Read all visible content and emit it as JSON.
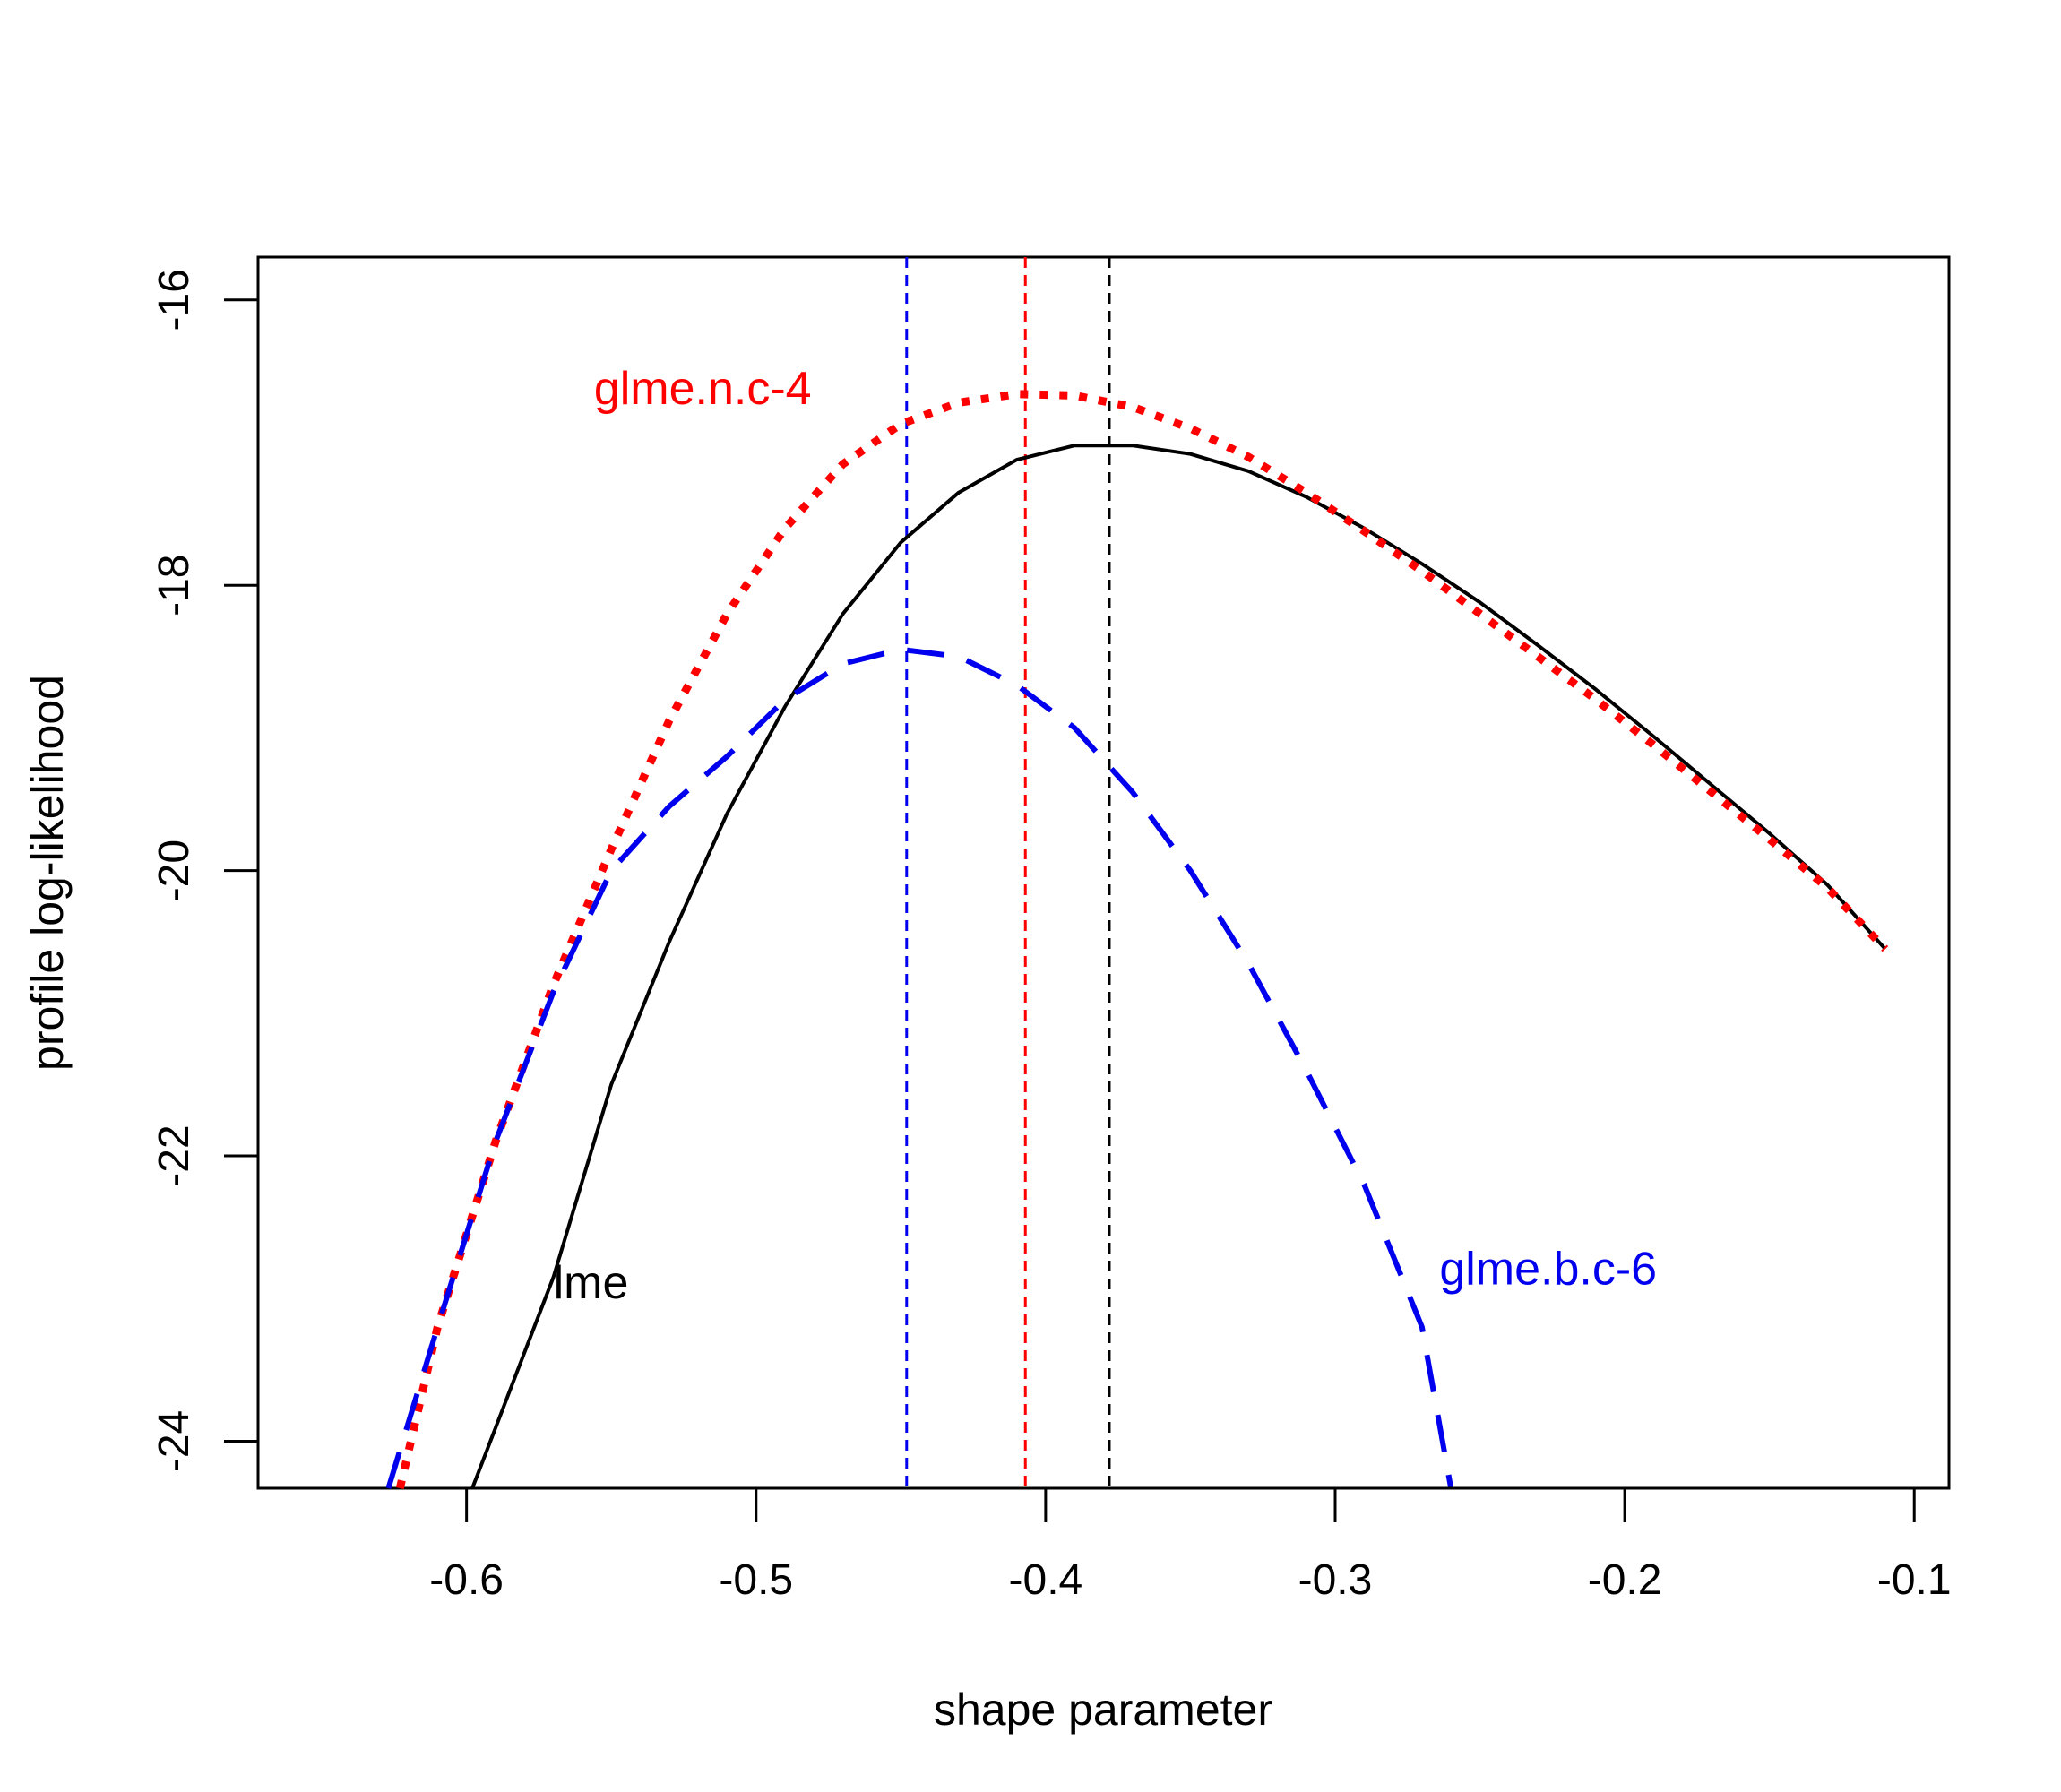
{
  "chart_data": {
    "type": "line",
    "title": "",
    "xlabel": "shape parameter",
    "ylabel": "profile log-likelihood",
    "xlim": [
      -0.672,
      -0.088
    ],
    "ylim": [
      -24.33,
      -15.7
    ],
    "x_ticks": [
      -0.6,
      -0.5,
      -0.4,
      -0.3,
      -0.2,
      -0.1
    ],
    "x_tick_labels": [
      "-0.6",
      "-0.5",
      "-0.4",
      "-0.3",
      "-0.2",
      "-0.1"
    ],
    "y_ticks": [
      -16,
      -18,
      -20,
      -22,
      -24
    ],
    "y_tick_labels": [
      "-16",
      "-18",
      "-20",
      "-22",
      "-24"
    ],
    "series": [
      {
        "name": "lme",
        "color": "#000000",
        "dash": "solid",
        "x": [
          -0.598,
          -0.57,
          -0.55,
          -0.53,
          -0.51,
          -0.49,
          -0.47,
          -0.45,
          -0.43,
          -0.41,
          -0.39,
          -0.37,
          -0.35,
          -0.33,
          -0.31,
          -0.29,
          -0.27,
          -0.25,
          -0.23,
          -0.21,
          -0.19,
          -0.17,
          -0.15,
          -0.13,
          -0.11
        ],
        "y": [
          -24.33,
          -22.85,
          -21.5,
          -20.5,
          -19.6,
          -18.85,
          -18.2,
          -17.7,
          -17.35,
          -17.12,
          -17.02,
          -17.02,
          -17.08,
          -17.2,
          -17.38,
          -17.6,
          -17.85,
          -18.12,
          -18.42,
          -18.73,
          -19.06,
          -19.4,
          -19.74,
          -20.1,
          -20.55
        ]
      },
      {
        "name": "glme.n.c-4",
        "color": "#ff0000",
        "dash": "dotted",
        "x": [
          -0.623,
          -0.61,
          -0.59,
          -0.57,
          -0.55,
          -0.53,
          -0.51,
          -0.49,
          -0.47,
          -0.45,
          -0.43,
          -0.41,
          -0.39,
          -0.37,
          -0.35,
          -0.33,
          -0.31,
          -0.29,
          -0.27,
          -0.25,
          -0.23,
          -0.21,
          -0.19,
          -0.17,
          -0.15,
          -0.13,
          -0.11
        ],
        "y": [
          -24.33,
          -23.2,
          -21.9,
          -20.8,
          -19.85,
          -18.95,
          -18.2,
          -17.6,
          -17.15,
          -16.87,
          -16.72,
          -16.66,
          -16.67,
          -16.75,
          -16.9,
          -17.1,
          -17.35,
          -17.62,
          -17.9,
          -18.2,
          -18.5,
          -18.8,
          -19.12,
          -19.45,
          -19.78,
          -20.12,
          -20.55
        ]
      },
      {
        "name": "glme.b.c-6",
        "color": "#0000ee",
        "dash": "dashed",
        "x": [
          -0.627,
          -0.61,
          -0.59,
          -0.57,
          -0.55,
          -0.53,
          -0.51,
          -0.49,
          -0.47,
          -0.45,
          -0.43,
          -0.41,
          -0.39,
          -0.37,
          -0.35,
          -0.33,
          -0.31,
          -0.29,
          -0.27,
          -0.26
        ],
        "y": [
          -24.33,
          -23.2,
          -21.9,
          -20.85,
          -20.0,
          -19.55,
          -19.2,
          -18.8,
          -18.55,
          -18.45,
          -18.5,
          -18.7,
          -19.0,
          -19.45,
          -20.0,
          -20.65,
          -21.4,
          -22.2,
          -23.2,
          -24.33
        ]
      }
    ],
    "vlines": [
      {
        "x": -0.448,
        "color": "#0000ee",
        "series": "glme.b.c-6"
      },
      {
        "x": -0.407,
        "color": "#ff0000",
        "series": "glme.n.c-4"
      },
      {
        "x": -0.378,
        "color": "#000000",
        "series": "lme"
      }
    ],
    "annotations": [
      {
        "text": "glme.n.c-4",
        "x": -0.556,
        "y": -16.73,
        "color": "#ff0000"
      },
      {
        "text": "lme",
        "x": -0.57,
        "y": -23.0,
        "color": "#000000"
      },
      {
        "text": "glme.b.c-6",
        "x": -0.264,
        "y": -22.9,
        "color": "#0000ee"
      }
    ],
    "grid": false,
    "legend": "none"
  }
}
